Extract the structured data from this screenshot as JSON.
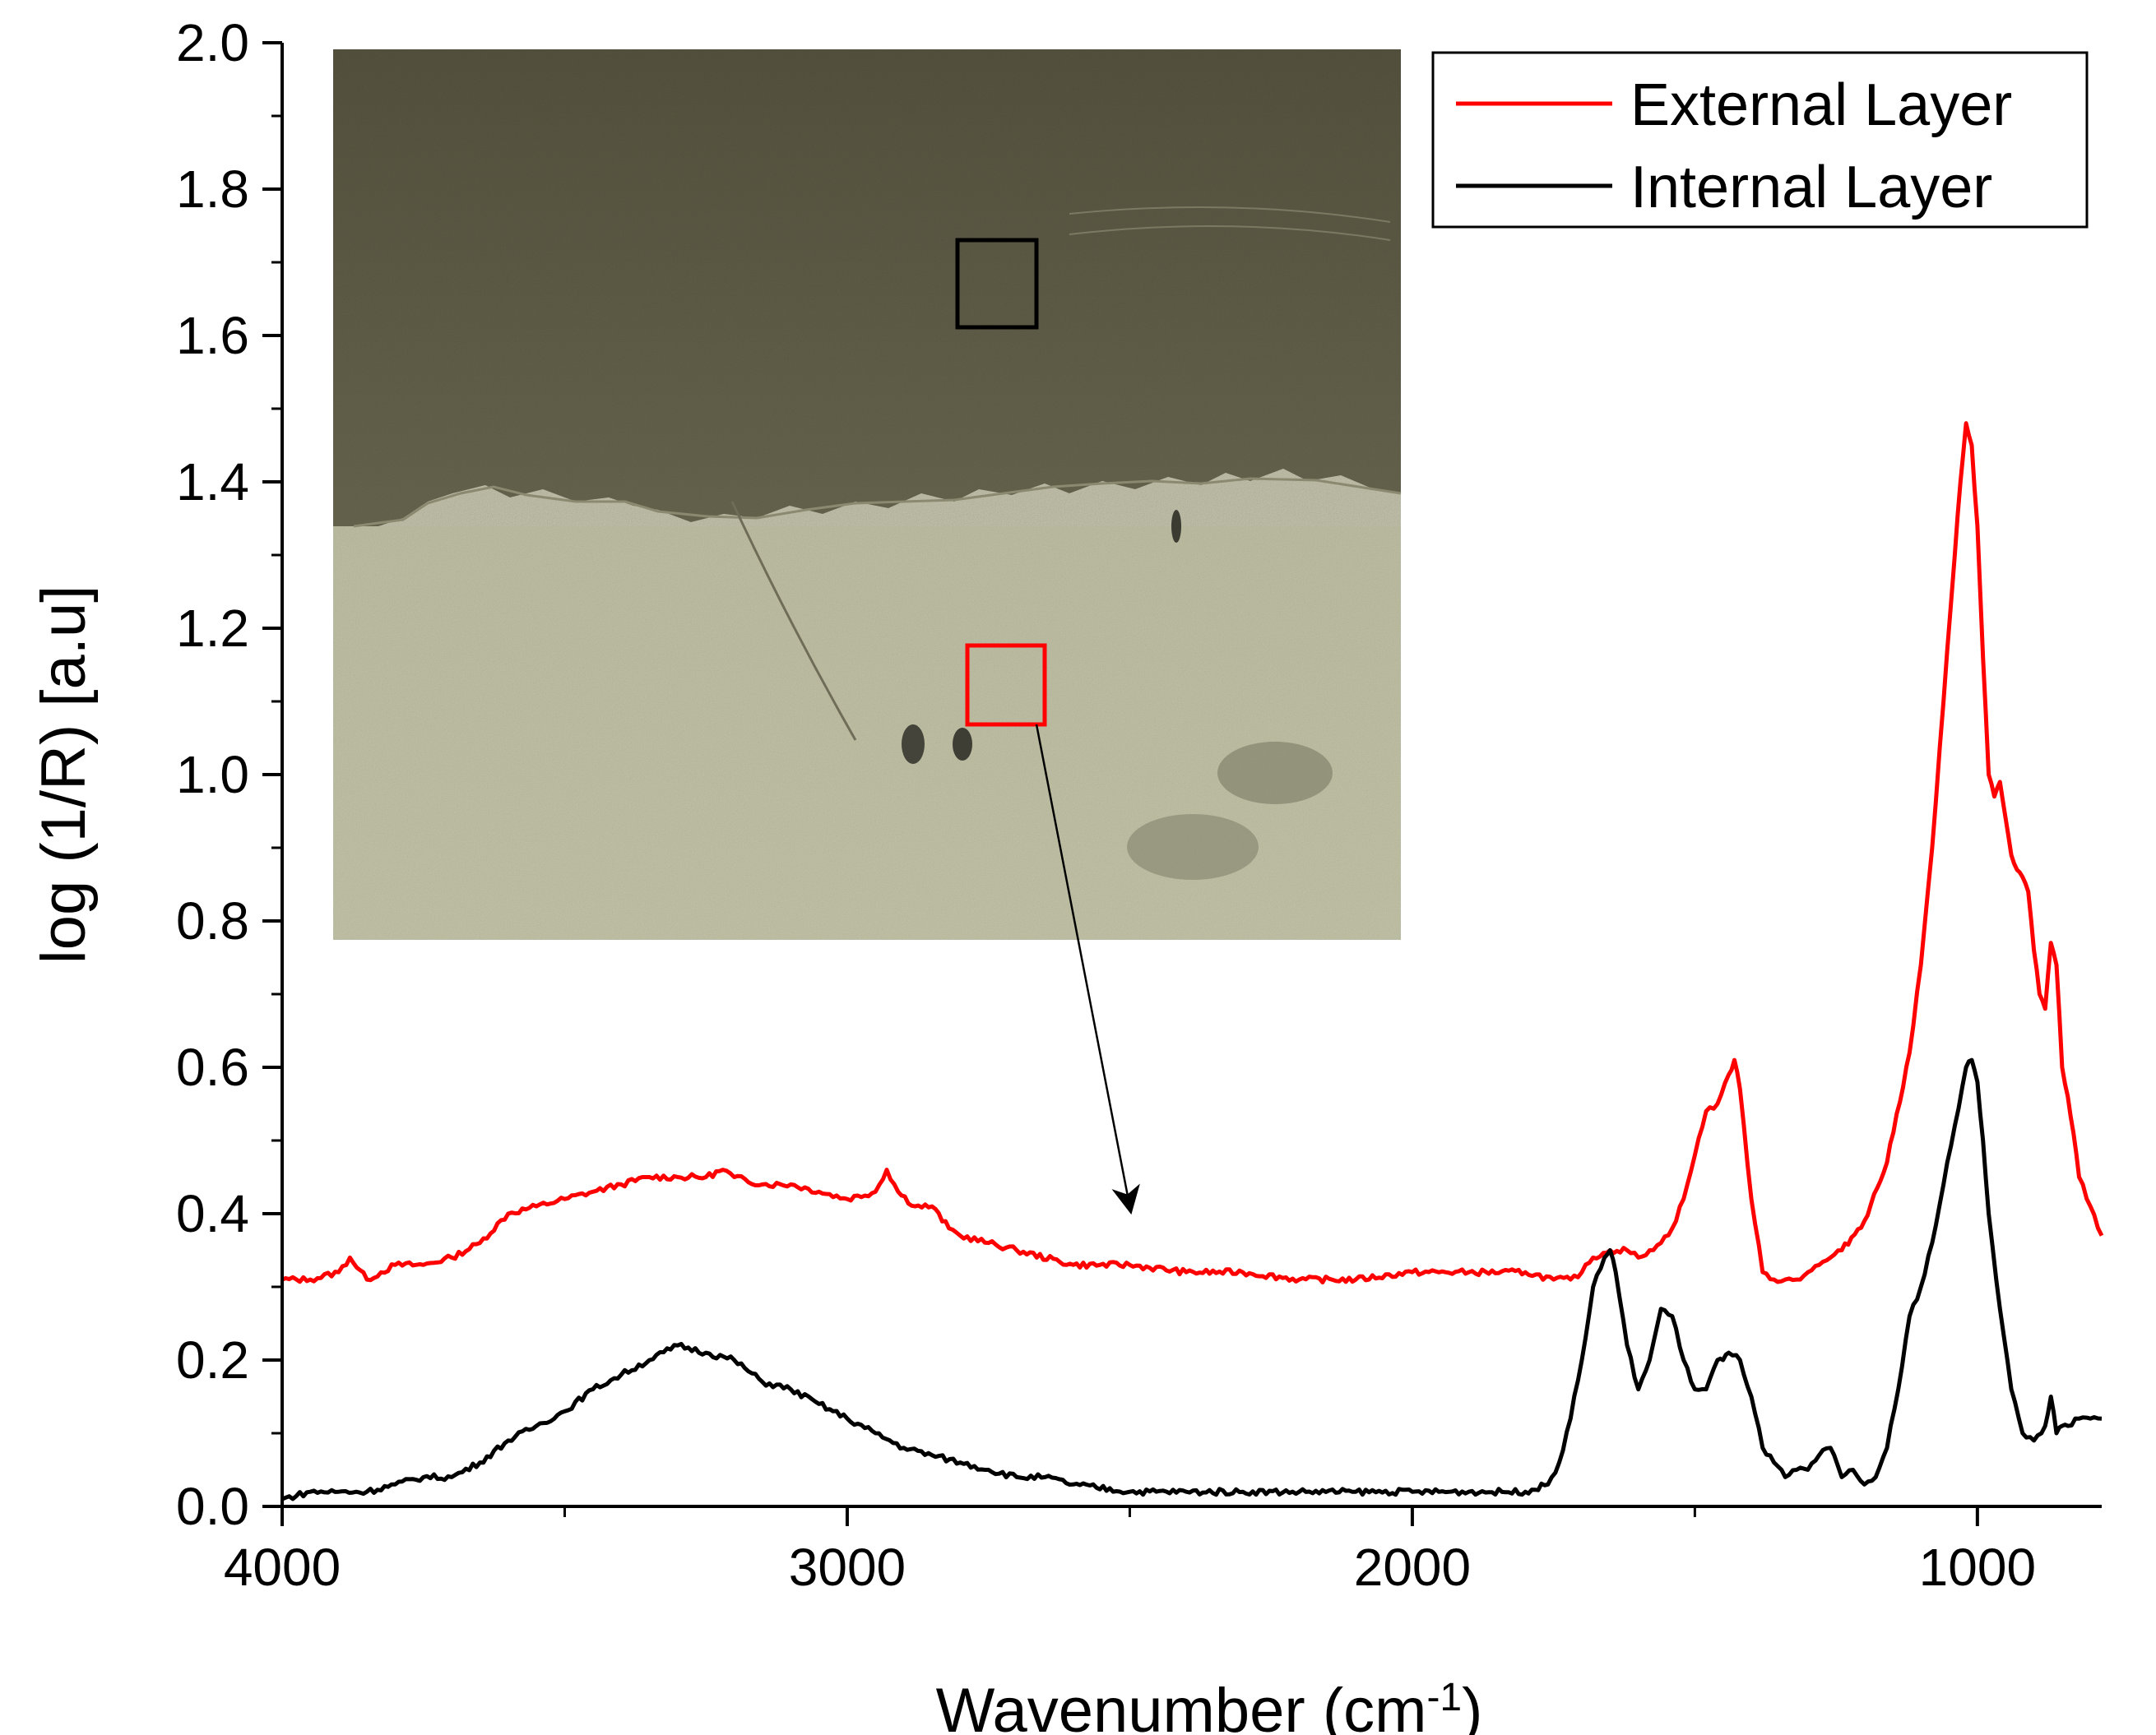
{
  "chart_data": {
    "type": "line",
    "title": "",
    "xlabel": "Wavenumber (cm",
    "xlabel_sup": "-1",
    "xlabel_close": ")",
    "ylabel": "log (1/R) [a.u]",
    "xlim": [
      4000,
      780
    ],
    "ylim": [
      0,
      2.0
    ],
    "x_reversed": true,
    "x_major_ticks": [
      4000,
      3000,
      2000,
      1000
    ],
    "x_tick_labels": [
      "4000",
      "3000",
      "2000",
      "1000"
    ],
    "x_minor_step": 500,
    "y_major_ticks": [
      0,
      0.2,
      0.4,
      0.6,
      0.8,
      1.0,
      1.2,
      1.4,
      1.6,
      1.8,
      2.0
    ],
    "y_tick_labels": [
      "0.0",
      "0.2",
      "0.4",
      "0.6",
      "0.8",
      "1.0",
      "1.2",
      "1.4",
      "1.6",
      "1.8",
      "2.0"
    ],
    "y_minor_step": 0.1,
    "grid": false,
    "legend": {
      "position": "top-right",
      "entries": [
        "External Layer",
        "Internal Layer"
      ]
    },
    "series": [
      {
        "name": "External Layer",
        "color": "#ff0000",
        "x": [
          4000,
          3950,
          3900,
          3880,
          3850,
          3800,
          3750,
          3700,
          3650,
          3600,
          3550,
          3500,
          3450,
          3400,
          3350,
          3300,
          3250,
          3220,
          3200,
          3150,
          3100,
          3050,
          3000,
          2950,
          2930,
          2910,
          2880,
          2850,
          2820,
          2800,
          2750,
          2700,
          2600,
          2500,
          2400,
          2300,
          2200,
          2100,
          2000,
          1900,
          1800,
          1750,
          1720,
          1700,
          1680,
          1650,
          1620,
          1600,
          1580,
          1560,
          1540,
          1520,
          1500,
          1480,
          1460,
          1440,
          1430,
          1420,
          1400,
          1380,
          1360,
          1340,
          1320,
          1300,
          1280,
          1260,
          1240,
          1200,
          1160,
          1120,
          1100,
          1080,
          1060,
          1040,
          1030,
          1020,
          1010,
          1000,
          990,
          980,
          970,
          960,
          950,
          940,
          930,
          920,
          910,
          900,
          890,
          880,
          870,
          860,
          850,
          840,
          830,
          820,
          800,
          780
        ],
        "y": [
          0.31,
          0.31,
          0.32,
          0.34,
          0.31,
          0.33,
          0.33,
          0.34,
          0.36,
          0.4,
          0.41,
          0.42,
          0.43,
          0.44,
          0.45,
          0.45,
          0.45,
          0.46,
          0.45,
          0.44,
          0.44,
          0.43,
          0.42,
          0.43,
          0.46,
          0.43,
          0.41,
          0.41,
          0.38,
          0.37,
          0.36,
          0.35,
          0.33,
          0.33,
          0.32,
          0.32,
          0.31,
          0.31,
          0.32,
          0.32,
          0.32,
          0.31,
          0.31,
          0.32,
          0.34,
          0.35,
          0.35,
          0.34,
          0.35,
          0.36,
          0.38,
          0.42,
          0.48,
          0.54,
          0.55,
          0.59,
          0.61,
          0.57,
          0.42,
          0.32,
          0.31,
          0.31,
          0.31,
          0.32,
          0.33,
          0.34,
          0.35,
          0.39,
          0.47,
          0.62,
          0.74,
          0.9,
          1.1,
          1.3,
          1.4,
          1.48,
          1.45,
          1.34,
          1.16,
          1.0,
          0.97,
          0.99,
          0.94,
          0.89,
          0.87,
          0.86,
          0.84,
          0.76,
          0.7,
          0.68,
          0.77,
          0.74,
          0.6,
          0.56,
          0.51,
          0.45,
          0.41,
          0.37
        ],
        "notable_points": [
          {
            "x": 1440,
            "y": 0.61
          },
          {
            "x": 1020,
            "y": 1.48
          }
        ]
      },
      {
        "name": "Internal Layer",
        "color": "#000000",
        "x": [
          4000,
          3950,
          3900,
          3850,
          3800,
          3750,
          3700,
          3650,
          3600,
          3550,
          3500,
          3450,
          3400,
          3350,
          3300,
          3250,
          3200,
          3150,
          3100,
          3050,
          3000,
          2950,
          2900,
          2850,
          2800,
          2750,
          2700,
          2650,
          2600,
          2500,
          2400,
          2300,
          2200,
          2100,
          2000,
          1900,
          1800,
          1760,
          1740,
          1720,
          1700,
          1680,
          1660,
          1650,
          1640,
          1620,
          1600,
          1580,
          1560,
          1540,
          1520,
          1500,
          1480,
          1460,
          1450,
          1440,
          1420,
          1400,
          1380,
          1360,
          1340,
          1320,
          1300,
          1280,
          1260,
          1240,
          1220,
          1200,
          1180,
          1160,
          1140,
          1120,
          1100,
          1080,
          1060,
          1040,
          1020,
          1010,
          1000,
          990,
          980,
          960,
          940,
          920,
          900,
          880,
          870,
          860,
          850,
          840,
          820,
          800,
          780
        ],
        "y": [
          0.01,
          0.02,
          0.02,
          0.02,
          0.03,
          0.04,
          0.04,
          0.06,
          0.09,
          0.11,
          0.13,
          0.16,
          0.18,
          0.2,
          0.22,
          0.21,
          0.2,
          0.17,
          0.16,
          0.14,
          0.12,
          0.1,
          0.08,
          0.07,
          0.06,
          0.05,
          0.04,
          0.04,
          0.03,
          0.02,
          0.02,
          0.02,
          0.02,
          0.02,
          0.02,
          0.02,
          0.02,
          0.03,
          0.06,
          0.12,
          0.2,
          0.3,
          0.34,
          0.35,
          0.32,
          0.22,
          0.16,
          0.2,
          0.27,
          0.26,
          0.2,
          0.16,
          0.16,
          0.2,
          0.2,
          0.21,
          0.2,
          0.15,
          0.08,
          0.06,
          0.04,
          0.05,
          0.05,
          0.07,
          0.08,
          0.04,
          0.05,
          0.03,
          0.04,
          0.08,
          0.16,
          0.26,
          0.3,
          0.36,
          0.44,
          0.52,
          0.6,
          0.61,
          0.58,
          0.5,
          0.4,
          0.27,
          0.16,
          0.1,
          0.09,
          0.11,
          0.15,
          0.1,
          0.11,
          0.11,
          0.12,
          0.12,
          0.12
        ]
      }
    ],
    "inset": {
      "description_visible": false,
      "markers": [
        {
          "color": "#000000",
          "target": "upper-dark-region"
        },
        {
          "color": "#ff0000",
          "target": "lower-light-region"
        }
      ]
    }
  }
}
